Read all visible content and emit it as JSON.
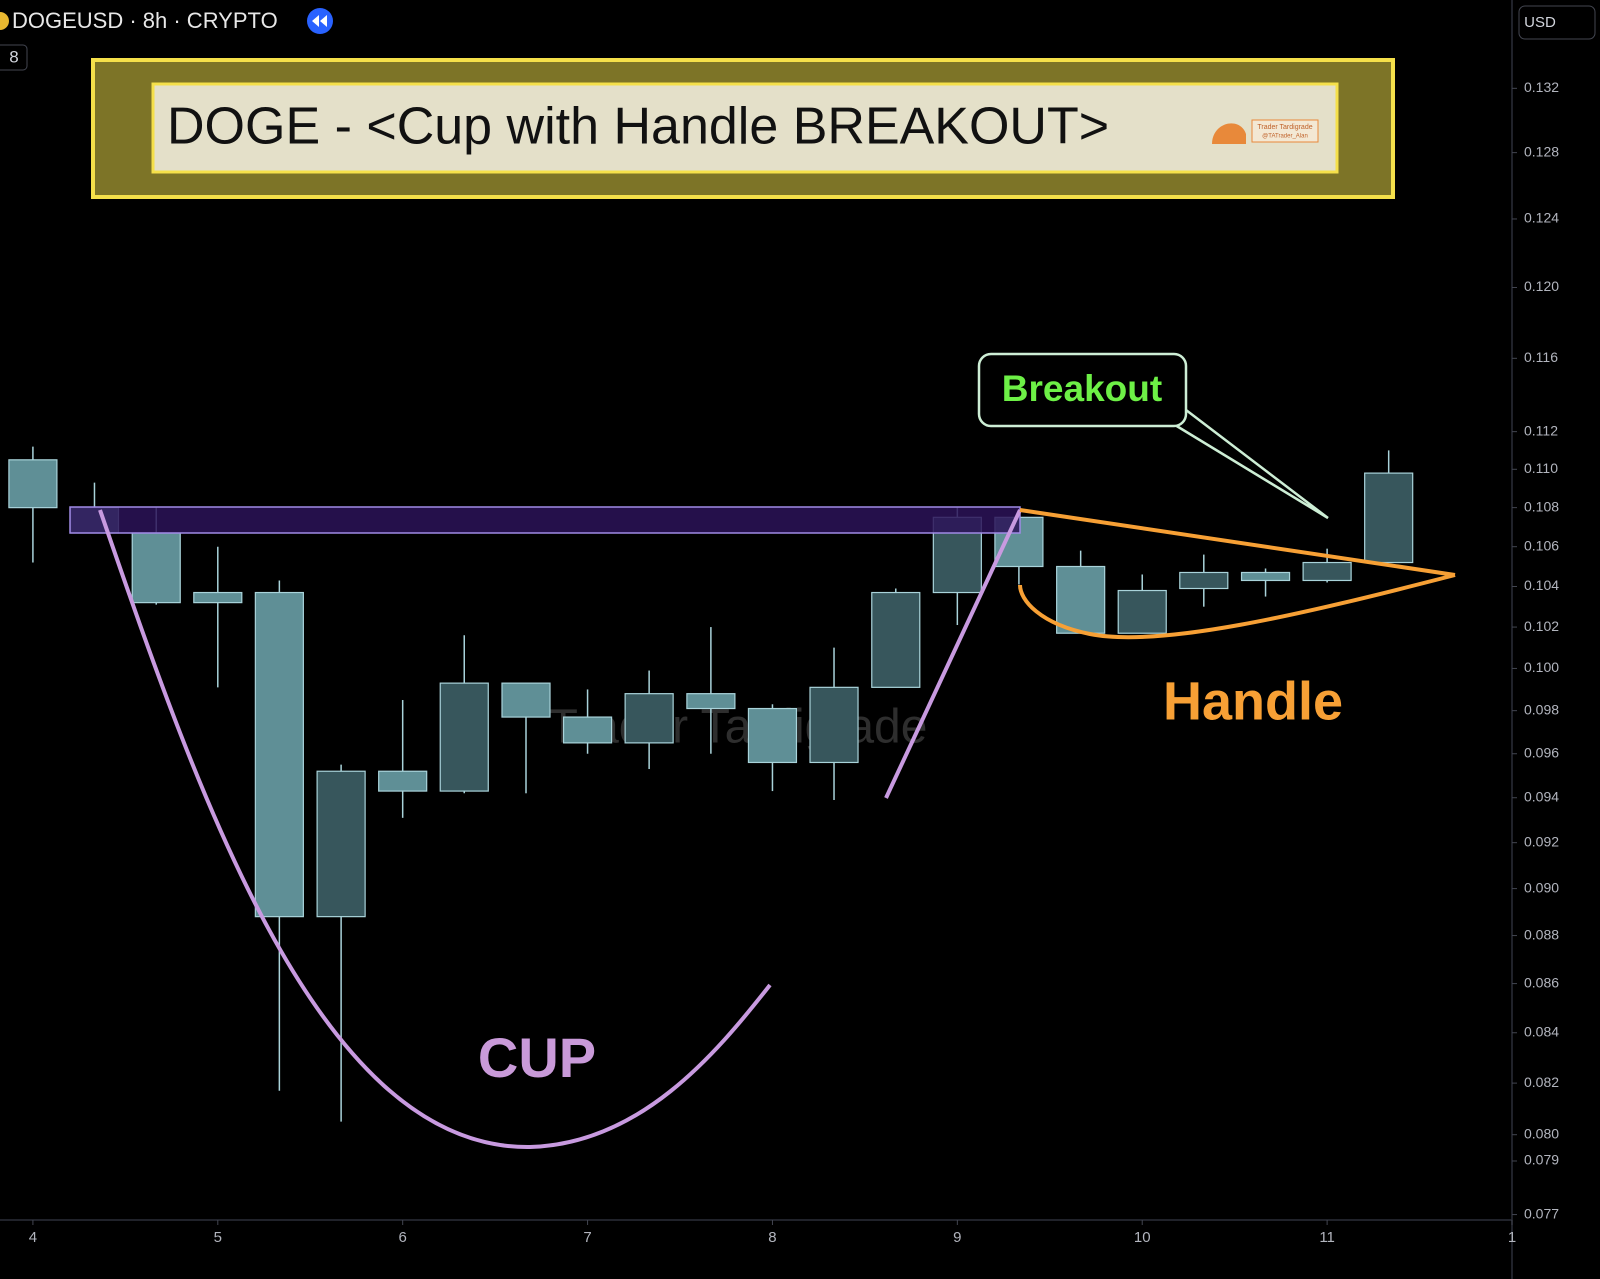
{
  "header": {
    "symbol": "DOGEUSD · 8h · CRYPTO",
    "badge": "8",
    "currency": "USD"
  },
  "chart_data": {
    "type": "candlestick",
    "title": "DOGE - <Cup with Handle BREAKOUT>",
    "logo_lines": [
      "Trader Tardigrade",
      "@TATrader_Alan"
    ],
    "watermark": "Trader Tardigrade",
    "annotations": {
      "breakout": "Breakout",
      "handle": "Handle",
      "cup": "CUP"
    },
    "x": [
      4,
      4.333,
      4.667,
      5,
      5.333,
      5.667,
      6,
      6.333,
      6.667,
      7,
      7.333,
      7.667,
      8,
      8.333,
      8.667,
      9,
      9.333,
      9.667,
      10,
      10.333,
      10.667,
      11,
      11.333
    ],
    "open": [
      0.1105,
      0.108,
      0.1067,
      0.1037,
      0.1037,
      0.0888,
      0.0952,
      0.0943,
      0.0993,
      0.0977,
      0.0965,
      0.0988,
      0.0981,
      0.0956,
      0.0991,
      0.1037,
      0.1075,
      0.105,
      0.1017,
      0.1039,
      0.1047,
      0.1043,
      0.1052
    ],
    "high": [
      0.1112,
      0.1093,
      0.108,
      0.106,
      0.1043,
      0.0955,
      0.0985,
      0.1016,
      0.0993,
      0.099,
      0.0999,
      0.102,
      0.0983,
      0.101,
      0.1039,
      0.108,
      0.1078,
      0.1058,
      0.1046,
      0.1056,
      0.1049,
      0.1059,
      0.111
    ],
    "low": [
      0.1052,
      0.1067,
      0.1031,
      0.0991,
      0.0817,
      0.0805,
      0.0931,
      0.0942,
      0.0942,
      0.096,
      0.0953,
      0.096,
      0.0943,
      0.0939,
      0.0991,
      0.1021,
      0.1041,
      0.1017,
      0.1017,
      0.103,
      0.1035,
      0.1042,
      0.1052
    ],
    "close": [
      0.108,
      0.1067,
      0.1032,
      0.1032,
      0.0888,
      0.0952,
      0.0943,
      0.0993,
      0.0977,
      0.0965,
      0.0988,
      0.0981,
      0.0956,
      0.0991,
      0.1037,
      0.1075,
      0.105,
      0.1017,
      0.1038,
      0.1047,
      0.1043,
      0.1052,
      0.1098
    ],
    "up_color": "#37565c",
    "down_color": "#5f8f96",
    "outline_color": "#a9d3da",
    "xlim": [
      3.822,
      12.0
    ],
    "xticks": [
      4,
      5,
      6,
      7,
      8,
      9,
      10,
      11,
      {
        "value": 12,
        "label": "1"
      }
    ],
    "ylim": [
      0.0768,
      0.1377
    ],
    "log_scale": true,
    "grid": false,
    "yticks": [
      0.132,
      0.128,
      0.124,
      {
        "value": 0.12,
        "label": "0.120"
      },
      0.116,
      0.112,
      {
        "value": 0.11,
        "label": "0.110"
      },
      0.108,
      0.106,
      0.104,
      0.102,
      {
        "value": 0.1,
        "label": "0.100"
      },
      0.098,
      0.096,
      0.094,
      0.092,
      {
        "value": 0.09,
        "label": "0.090"
      },
      0.088,
      0.086,
      0.084,
      0.082,
      {
        "value": 0.08,
        "label": "0.080"
      },
      0.079,
      0.077
    ]
  }
}
